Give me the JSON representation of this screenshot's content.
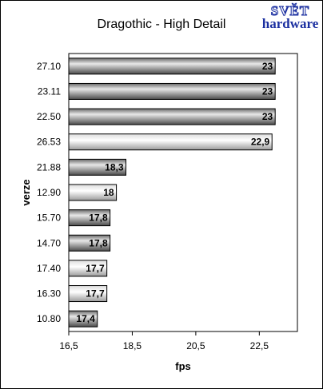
{
  "chart_data": {
    "type": "bar",
    "orientation": "horizontal",
    "title": "Dragothic - High Detail",
    "xlabel": "fps",
    "ylabel": "verze",
    "xlim": [
      16.5,
      23.7
    ],
    "xticks": [
      16.5,
      18.5,
      20.5,
      22.5
    ],
    "xtick_labels": [
      "16,5",
      "18,5",
      "20,5",
      "22,5"
    ],
    "categories": [
      "27.10",
      "23.11",
      "22.50",
      "26.53",
      "21.88",
      "12.90",
      "15.70",
      "14.70",
      "17.40",
      "16.30",
      "10.80"
    ],
    "values": [
      23,
      23,
      23,
      22.9,
      18.3,
      18,
      17.8,
      17.8,
      17.7,
      17.7,
      17.4
    ],
    "value_labels": [
      "23",
      "23",
      "23",
      "22,9",
      "18,3",
      "18",
      "17,8",
      "17,8",
      "17,7",
      "17,7",
      "17,4"
    ],
    "bar_styles": [
      "dark",
      "dark",
      "dark",
      "light",
      "dark",
      "light",
      "dark",
      "dark",
      "light",
      "light",
      "dark"
    ],
    "colors": {
      "dark": "#5a5a5a",
      "light": "#ffffff",
      "highlight": "#e8e8e8"
    },
    "grid": false,
    "legend": "none"
  },
  "logo": {
    "line1": "SVĚT",
    "line2": "hardware"
  }
}
